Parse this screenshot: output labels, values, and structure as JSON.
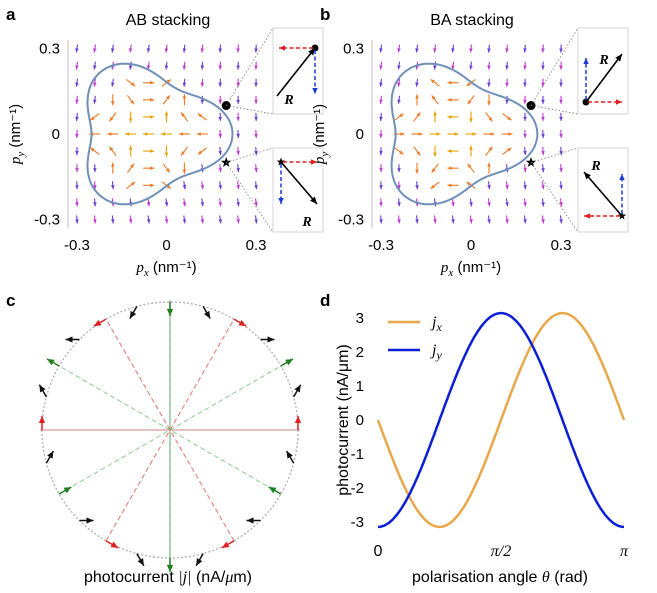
{
  "panel_letters": {
    "a": "a",
    "b": "b",
    "c": "c",
    "d": "d"
  },
  "chart_data": [
    {
      "panel": "a",
      "type": "vector-field",
      "title": "AB stacking",
      "xlabel_var": "p",
      "xlabel_sub": "x",
      "xlabel_unit": "(nm⁻¹)",
      "ylabel_var": "p",
      "ylabel_sub": "y",
      "ylabel_unit": "(nm⁻¹)",
      "xlim": [
        -0.33,
        0.33
      ],
      "ylim": [
        -0.33,
        0.33
      ],
      "xticks": [
        "-0.3",
        "0",
        "0.3"
      ],
      "yticks": [
        "0.3",
        "0",
        "-0.3"
      ],
      "fermi_contour": "rounded triangle with vertex pointing +x",
      "markers": [
        {
          "symbol": "dot",
          "x": 0.2,
          "y": 0.1
        },
        {
          "symbol": "star",
          "x": 0.2,
          "y": -0.1
        }
      ],
      "inset_vector_label": "R",
      "vector_field_colors": [
        "#e6a100",
        "#f07820",
        "#c03ad0",
        "#6a3fd0"
      ]
    },
    {
      "panel": "b",
      "type": "vector-field",
      "title": "BA stacking",
      "xlabel_var": "p",
      "xlabel_sub": "x",
      "xlabel_unit": "(nm⁻¹)",
      "ylabel_var": "p",
      "ylabel_sub": "y",
      "ylabel_unit": "(nm⁻¹)",
      "xlim": [
        -0.33,
        0.33
      ],
      "ylim": [
        -0.33,
        0.33
      ],
      "xticks": [
        "-0.3",
        "0",
        "0.3"
      ],
      "yticks": [
        "0.3",
        "0",
        "-0.3"
      ],
      "markers": [
        {
          "symbol": "dot",
          "x": 0.2,
          "y": 0.1
        },
        {
          "symbol": "star",
          "x": 0.2,
          "y": -0.1
        }
      ],
      "inset_vector_label": "R"
    },
    {
      "panel": "c",
      "type": "polar-arrows",
      "xlabel": "photocurrent |j| (nA/μm)",
      "xlabel_main": "photocurrent ",
      "xlabel_math": "|j|",
      "xlabel_unit": " (nA/",
      "xlabel_mu": "μ",
      "xlabel_end": "m)",
      "directions_deg": [
        0,
        30,
        60,
        90,
        120,
        150,
        180,
        210,
        240,
        270,
        300,
        330
      ],
      "line_colors": {
        "vertical": "#4caf50",
        "diag_a": "#e57373",
        "diag_b": "#81c784",
        "horizontal": "#e57373"
      },
      "arrow_colors": {
        "green": "#1b7f1b",
        "red": "#e02020",
        "black": "#111111"
      }
    },
    {
      "panel": "d",
      "type": "line",
      "xlabel": "polarisation angle θ (rad)",
      "xlabel_main": "polarisation angle ",
      "xlabel_theta": "θ",
      "xlabel_unit": " (rad)",
      "ylabel": "photocurrent (nA/μm)",
      "xlim": [
        0,
        3.1416
      ],
      "ylim": [
        -3.3,
        3.3
      ],
      "xticks": [
        {
          "value": 0,
          "label": "0"
        },
        {
          "value": 1.5708,
          "label": "π/2"
        },
        {
          "value": 3.1416,
          "label": "π"
        }
      ],
      "yticks": [
        -3,
        -2,
        -1,
        0,
        1,
        2,
        3
      ],
      "grid": false,
      "legend": "top-left",
      "series": [
        {
          "name": "j_x",
          "label_var": "j",
          "label_sub": "x",
          "color": "#e8a84a",
          "amplitude": 3.15,
          "model": "-A*sin(2*theta)"
        },
        {
          "name": "j_y",
          "label_var": "j",
          "label_sub": "y",
          "color": "#0a1fd6",
          "amplitude": 3.15,
          "model": "-A*cos(2*theta)"
        }
      ]
    }
  ]
}
